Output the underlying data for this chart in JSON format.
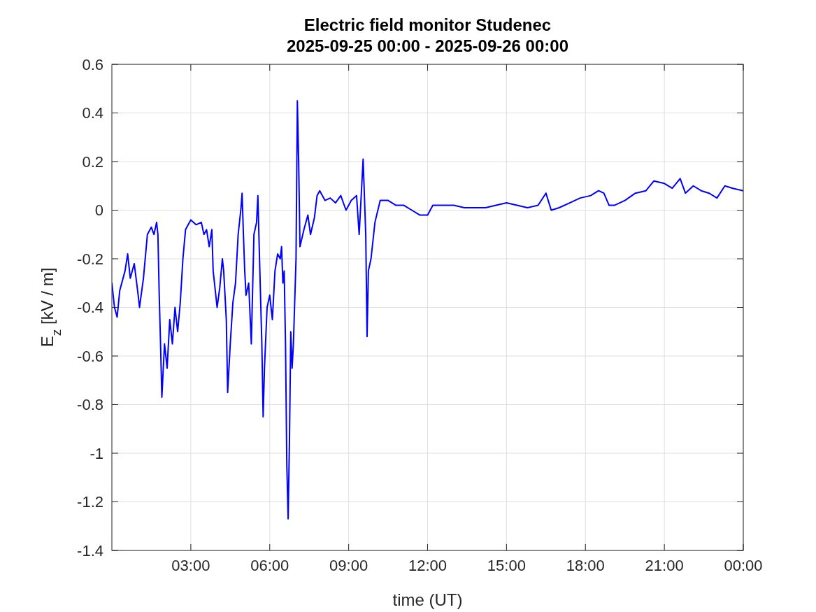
{
  "chart_data": {
    "type": "line",
    "title": "Electric field monitor Studenec\n2025-09-25 00:00 - 2025-09-26 00:00",
    "xlabel": "time (UT)",
    "ylabel": "E$_{z}$ [kV / m]",
    "xlim": [
      0,
      24
    ],
    "xticks": [
      {
        "value": 3,
        "label": "03:00"
      },
      {
        "value": 6,
        "label": "06:00"
      },
      {
        "value": 9,
        "label": "09:00"
      },
      {
        "value": 12,
        "label": "12:00"
      },
      {
        "value": 15,
        "label": "15:00"
      },
      {
        "value": 18,
        "label": "18:00"
      },
      {
        "value": 21,
        "label": "21:00"
      },
      {
        "value": 24,
        "label": "00:00"
      }
    ],
    "ylim": [
      -1.4,
      0.6
    ],
    "yticks": [
      -1.4,
      -1.2,
      -1,
      -0.8,
      -0.6,
      -0.4,
      -0.2,
      0,
      0.2,
      0.4,
      0.6
    ],
    "grid": true,
    "line_style": "solid",
    "marker": "none",
    "series": [
      {
        "color": "#0000ff",
        "x": [
          0,
          0.1,
          0.2,
          0.3,
          0.5,
          0.6,
          0.7,
          0.85,
          1,
          1.05,
          1.2,
          1.35,
          1.5,
          1.6,
          1.7,
          1.75,
          1.8,
          1.85,
          1.9,
          2,
          2.1,
          2.2,
          2.3,
          2.4,
          2.5,
          2.6,
          2.7,
          2.8,
          2.9,
          3,
          3.2,
          3.4,
          3.5,
          3.6,
          3.7,
          3.8,
          3.85,
          4,
          4.1,
          4.2,
          4.25,
          4.35,
          4.4,
          4.5,
          4.6,
          4.7,
          4.8,
          4.9,
          4.95,
          5,
          5.05,
          5.1,
          5.2,
          5.3,
          5.4,
          5.5,
          5.55,
          5.6,
          5.65,
          5.7,
          5.75,
          5.8,
          5.9,
          6,
          6.1,
          6.2,
          6.3,
          6.4,
          6.45,
          6.5,
          6.55,
          6.6,
          6.65,
          6.7,
          6.75,
          6.8,
          6.85,
          6.9,
          7,
          7.05,
          7.1,
          7.15,
          7.3,
          7.45,
          7.55,
          7.7,
          7.8,
          7.9,
          8.1,
          8.3,
          8.5,
          8.7,
          8.9,
          9.1,
          9.3,
          9.4,
          9.55,
          9.65,
          9.7,
          9.75,
          9.85,
          10,
          10.2,
          10.5,
          10.8,
          11.1,
          11.4,
          11.7,
          12,
          12.2,
          12.6,
          13,
          13.4,
          13.8,
          14.2,
          14.6,
          15,
          15.4,
          15.8,
          16.2,
          16.5,
          16.7,
          17,
          17.4,
          17.8,
          18.2,
          18.5,
          18.7,
          18.9,
          19.1,
          19.5,
          19.9,
          20.3,
          20.6,
          21,
          21.3,
          21.6,
          21.8,
          22.1,
          22.4,
          22.7,
          23,
          23.3,
          23.6,
          24
        ],
        "values": [
          -0.3,
          -0.4,
          -0.44,
          -0.33,
          -0.25,
          -0.18,
          -0.28,
          -0.22,
          -0.35,
          -0.4,
          -0.28,
          -0.1,
          -0.07,
          -0.1,
          -0.05,
          -0.1,
          -0.35,
          -0.55,
          -0.77,
          -0.55,
          -0.65,
          -0.45,
          -0.55,
          -0.4,
          -0.5,
          -0.38,
          -0.2,
          -0.08,
          -0.06,
          -0.04,
          -0.06,
          -0.05,
          -0.1,
          -0.08,
          -0.15,
          -0.08,
          -0.25,
          -0.4,
          -0.32,
          -0.2,
          -0.25,
          -0.45,
          -0.75,
          -0.55,
          -0.38,
          -0.3,
          -0.1,
          0,
          0.07,
          -0.1,
          -0.25,
          -0.35,
          -0.3,
          -0.55,
          -0.1,
          -0.05,
          0.06,
          -0.15,
          -0.35,
          -0.55,
          -0.85,
          -0.65,
          -0.4,
          -0.35,
          -0.45,
          -0.25,
          -0.18,
          -0.2,
          -0.15,
          -0.3,
          -0.25,
          -0.55,
          -1.05,
          -1.27,
          -0.95,
          -0.5,
          -0.65,
          -0.55,
          -0.2,
          0.45,
          0.2,
          -0.15,
          -0.08,
          -0.02,
          -0.1,
          -0.03,
          0.06,
          0.08,
          0.04,
          0.05,
          0.03,
          0.06,
          0,
          0.04,
          0.06,
          -0.1,
          0.21,
          -0.1,
          -0.52,
          -0.25,
          -0.2,
          -0.05,
          0.04,
          0.04,
          0.02,
          0.02,
          0,
          -0.02,
          -0.02,
          0.02,
          0.02,
          0.02,
          0.01,
          0.01,
          0.01,
          0.02,
          0.03,
          0.02,
          0.01,
          0.02,
          0.07,
          0,
          0.01,
          0.03,
          0.05,
          0.06,
          0.08,
          0.07,
          0.02,
          0.02,
          0.04,
          0.07,
          0.08,
          0.12,
          0.11,
          0.09,
          0.13,
          0.07,
          0.1,
          0.08,
          0.07,
          0.05,
          0.1,
          0.09,
          0.08
        ]
      }
    ]
  }
}
